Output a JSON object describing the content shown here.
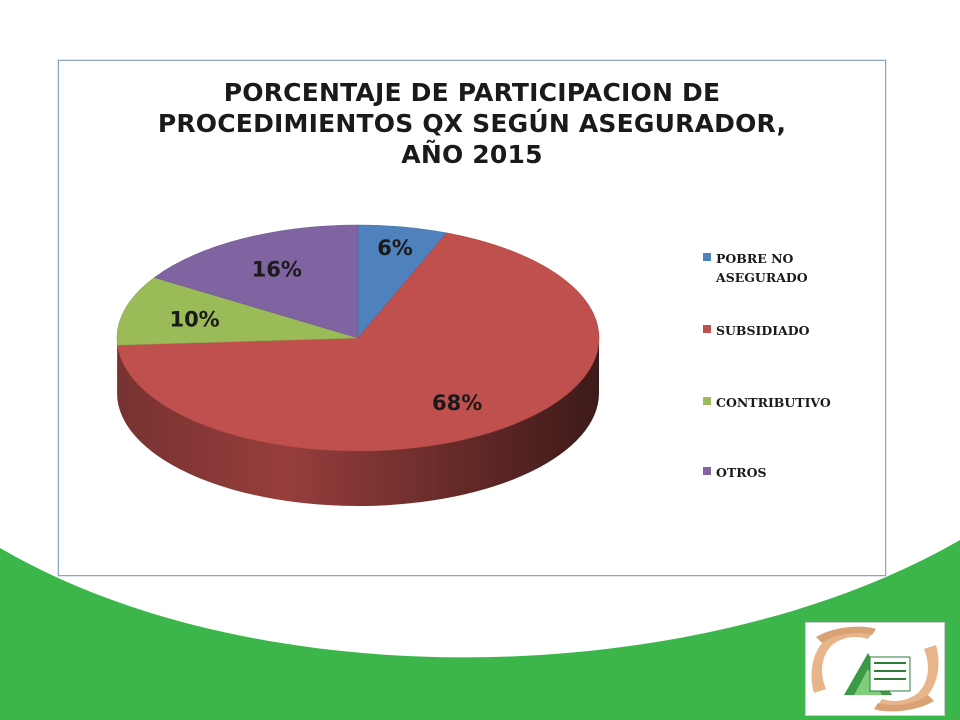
{
  "chart_data": {
    "type": "pie",
    "title_lines": [
      "PORCENTAJE DE PARTICIPACION DE",
      "PROCEDIMIENTOS QX SEGÚN ASEGURADOR,",
      "AÑO 2015"
    ],
    "slices": [
      {
        "name": "POBRE NO ASEGURADO",
        "value": 6,
        "label": "6%",
        "color": "#4f81bd"
      },
      {
        "name": "SUBSIDIADO",
        "value": 68,
        "label": "68%",
        "color": "#c0504d"
      },
      {
        "name": "CONTRIBUTIVO",
        "value": 10,
        "label": "10%",
        "color": "#9bbb59"
      },
      {
        "name": "OTROS",
        "value": 16,
        "label": "16%",
        "color": "#8064a2"
      }
    ],
    "legend_position": "right",
    "style": "3d"
  },
  "colors": {
    "wave_green": "#3cb54a"
  },
  "logo": {
    "icon": "hands-house-logo-icon"
  }
}
